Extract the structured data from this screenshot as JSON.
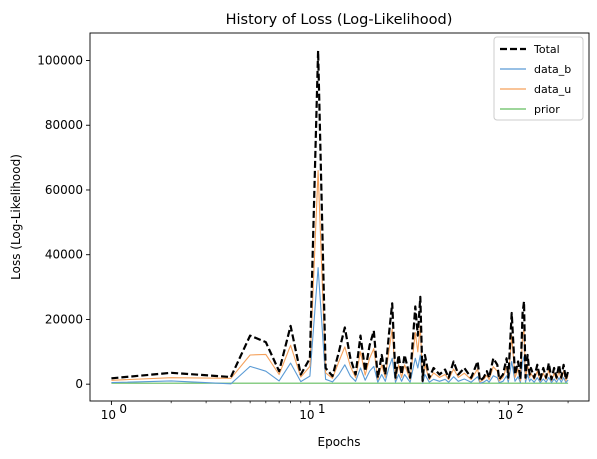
{
  "chart_data": {
    "type": "line",
    "title": "History of Loss (Log-Likelihood)",
    "xlabel": "Epochs",
    "ylabel": "Loss (Log-Likelihood)",
    "x_scale": "log",
    "xlim": [
      0.78,
      255
    ],
    "ylim": [
      -5200,
      108500
    ],
    "x_ticks": [
      {
        "value": 1,
        "base": "10",
        "exp": "0"
      },
      {
        "value": 10,
        "base": "10",
        "exp": "1"
      },
      {
        "value": 100,
        "base": "10",
        "exp": "2"
      }
    ],
    "y_ticks": [
      0,
      20000,
      40000,
      60000,
      80000,
      100000
    ],
    "legend_position": "top-right",
    "grid": false,
    "series": [
      {
        "name": "Total",
        "color": "#000000",
        "style": "dashed",
        "x": [
          1,
          2,
          4,
          5,
          6,
          7,
          8,
          9,
          10,
          11,
          12,
          13,
          14,
          15,
          16,
          17,
          18,
          19,
          20,
          21,
          22,
          23,
          24,
          25,
          26,
          27,
          28,
          29,
          30,
          32,
          34,
          35,
          36,
          37,
          38,
          40,
          42,
          45,
          48,
          50,
          53,
          56,
          60,
          65,
          70,
          72,
          75,
          78,
          80,
          84,
          88,
          90,
          94,
          98,
          100,
          104,
          108,
          112,
          115,
          118,
          120,
          122,
          125,
          128,
          130,
          135,
          140,
          145,
          150,
          155,
          160,
          165,
          170,
          175,
          180,
          185,
          190,
          195,
          200
        ],
        "values": [
          1800,
          3500,
          2200,
          15000,
          13000,
          4000,
          18000,
          3000,
          8000,
          103000,
          5000,
          2500,
          10000,
          17500,
          8000,
          3000,
          15000,
          4000,
          12000,
          16500,
          2000,
          9000,
          3000,
          15000,
          25000,
          2000,
          9000,
          3000,
          9000,
          2000,
          24000,
          15000,
          27000,
          1000,
          9000,
          2000,
          5000,
          3000,
          4500,
          2000,
          7000,
          3000,
          5000,
          2000,
          7000,
          1000,
          2000,
          4000,
          2000,
          8000,
          6000,
          1500,
          3000,
          8000,
          2000,
          22000,
          3000,
          7000,
          1500,
          22000,
          25500,
          2000,
          9000,
          3000,
          5000,
          2000,
          6000,
          1500,
          5000,
          2000,
          6500,
          1500,
          5000,
          2000,
          6000,
          2000,
          6000,
          1500,
          4000
        ]
      },
      {
        "name": "data_b",
        "color": "#5b9bd5",
        "style": "solid",
        "x": [
          1,
          2,
          4,
          5,
          6,
          7,
          8,
          9,
          10,
          11,
          12,
          13,
          14,
          15,
          16,
          17,
          18,
          19,
          20,
          21,
          22,
          23,
          24,
          25,
          26,
          27,
          28,
          29,
          30,
          32,
          34,
          35,
          36,
          37,
          38,
          40,
          42,
          45,
          48,
          50,
          53,
          56,
          60,
          65,
          70,
          72,
          75,
          78,
          80,
          84,
          88,
          90,
          94,
          98,
          100,
          104,
          108,
          112,
          115,
          118,
          120,
          122,
          125,
          128,
          130,
          135,
          140,
          145,
          150,
          155,
          160,
          165,
          170,
          175,
          180,
          185,
          190,
          195,
          200
        ],
        "values": [
          500,
          1000,
          100,
          5500,
          4000,
          1000,
          6500,
          800,
          2500,
          36000,
          1500,
          700,
          3000,
          6000,
          2500,
          900,
          5000,
          1200,
          4000,
          5500,
          600,
          3000,
          900,
          5000,
          8000,
          600,
          3000,
          900,
          3000,
          600,
          8000,
          5000,
          9000,
          300,
          3000,
          600,
          1500,
          900,
          1500,
          600,
          2300,
          900,
          1600,
          600,
          2300,
          300,
          600,
          1300,
          600,
          2600,
          2000,
          500,
          900,
          2600,
          600,
          7000,
          900,
          2300,
          500,
          7000,
          8500,
          600,
          3000,
          900,
          1600,
          600,
          2000,
          500,
          1600,
          600,
          2100,
          500,
          1600,
          600,
          2000,
          600,
          2000,
          500,
          1300
        ]
      },
      {
        "name": "data_u",
        "color": "#f5a15b",
        "style": "solid",
        "x": [
          1,
          2,
          4,
          5,
          6,
          7,
          8,
          9,
          10,
          11,
          12,
          13,
          14,
          15,
          16,
          17,
          18,
          19,
          20,
          21,
          22,
          23,
          24,
          25,
          26,
          27,
          28,
          29,
          30,
          32,
          34,
          35,
          36,
          37,
          38,
          40,
          42,
          45,
          48,
          50,
          53,
          56,
          60,
          65,
          70,
          72,
          75,
          78,
          80,
          84,
          88,
          90,
          94,
          98,
          100,
          104,
          108,
          112,
          115,
          118,
          120,
          122,
          125,
          128,
          130,
          135,
          140,
          145,
          150,
          155,
          160,
          165,
          170,
          175,
          180,
          185,
          190,
          195,
          200
        ],
        "values": [
          1200,
          2000,
          1800,
          9000,
          9200,
          3000,
          12000,
          2200,
          5500,
          66000,
          3500,
          1800,
          7000,
          11500,
          5500,
          2000,
          10000,
          2800,
          8000,
          11000,
          1400,
          6000,
          2100,
          10000,
          17000,
          1400,
          6000,
          2100,
          6000,
          1400,
          16000,
          10000,
          18000,
          700,
          6000,
          1400,
          3500,
          2100,
          3000,
          1400,
          4700,
          2100,
          3400,
          1400,
          4700,
          700,
          1400,
          2700,
          1400,
          5400,
          4000,
          1000,
          2100,
          5400,
          1400,
          15000,
          2100,
          4700,
          1000,
          15000,
          17000,
          1400,
          6000,
          2100,
          3400,
          1400,
          4000,
          1000,
          3400,
          1400,
          4400,
          1000,
          3400,
          1400,
          4000,
          1400,
          4000,
          1000,
          2700
        ]
      },
      {
        "name": "prior",
        "color": "#63be5f",
        "style": "solid",
        "x": [
          1,
          200
        ],
        "values": [
          300,
          300
        ]
      }
    ]
  }
}
